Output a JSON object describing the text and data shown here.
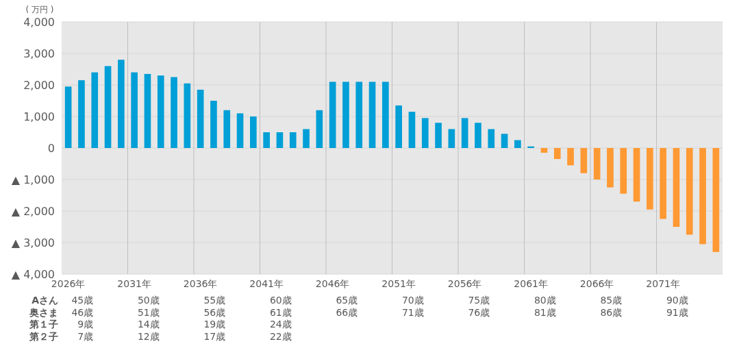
{
  "chart_data": {
    "type": "bar",
    "ylabel": "( 万円 )",
    "categories": [
      "2026年",
      null,
      null,
      null,
      null,
      "2031年",
      null,
      null,
      null,
      null,
      "2036年",
      null,
      null,
      null,
      null,
      "2041年",
      null,
      null,
      null,
      null,
      "2046年",
      null,
      null,
      null,
      null,
      "2051年",
      null,
      null,
      null,
      null,
      "2056年",
      null,
      null,
      null,
      null,
      "2061年",
      null,
      null,
      null,
      null,
      "2066年",
      null,
      null,
      null,
      null,
      "2071年",
      null,
      null,
      null,
      null
    ],
    "values": [
      1950,
      2150,
      2400,
      2600,
      2800,
      2400,
      2350,
      2300,
      2250,
      2050,
      1850,
      1500,
      1200,
      1100,
      1000,
      500,
      500,
      500,
      600,
      1200,
      2100,
      2100,
      2100,
      2100,
      2100,
      1350,
      1150,
      950,
      800,
      600,
      950,
      800,
      600,
      450,
      250,
      50,
      -150,
      -350,
      -550,
      -800,
      -1000,
      -1250,
      -1450,
      -1700,
      -1950,
      -2250,
      -2500,
      -2750,
      -3050,
      -3300
    ],
    "colors": [
      "#009fd7",
      "#009fd7",
      "#009fd7",
      "#009fd7",
      "#009fd7",
      "#009fd7",
      "#009fd7",
      "#009fd7",
      "#009fd7",
      "#009fd7",
      "#009fd7",
      "#009fd7",
      "#009fd7",
      "#009fd7",
      "#009fd7",
      "#009fd7",
      "#009fd7",
      "#009fd7",
      "#009fd7",
      "#009fd7",
      "#009fd7",
      "#009fd7",
      "#009fd7",
      "#009fd7",
      "#009fd7",
      "#009fd7",
      "#009fd7",
      "#009fd7",
      "#009fd7",
      "#009fd7",
      "#009fd7",
      "#009fd7",
      "#009fd7",
      "#009fd7",
      "#009fd7",
      "#009fd7",
      "#ff9933",
      "#ff9933",
      "#ff9933",
      "#ff9933",
      "#ff9933",
      "#ff9933",
      "#ff9933",
      "#ff9933",
      "#ff9933",
      "#ff9933",
      "#ff9933",
      "#ff9933",
      "#ff9933",
      "#ff9933"
    ],
    "ylim": [
      -4000,
      4000
    ],
    "yticks": [
      {
        "value": 4000,
        "label": "4,000"
      },
      {
        "value": 3000,
        "label": "3,000"
      },
      {
        "value": 2000,
        "label": "2,000"
      },
      {
        "value": 1000,
        "label": "1,000"
      },
      0,
      {
        "value": -1000,
        "label": "▲ 1,000"
      },
      {
        "value": -2000,
        "label": "▲ 2,000"
      },
      {
        "value": -3000,
        "label": "▲ 3,000"
      },
      {
        "value": -4000,
        "label": "▲ 4,000"
      }
    ],
    "grid": true,
    "annotations": [
      "Aさん",
      "45歳",
      "50歳",
      "55歳",
      "60歳",
      "65歳",
      "70歳",
      "75歳",
      "80歳",
      "85歳",
      "90歳",
      "奥さま",
      "46歳",
      "51歳",
      "56歳",
      "61歳",
      "66歳",
      "71歳",
      "76歳",
      "81歳",
      "86歳",
      "91歳",
      "第１子",
      "9歳",
      "14歳",
      "19歳",
      "24歳",
      "第２子",
      "7歳",
      "12歳",
      "17歳",
      "22歳"
    ]
  }
}
